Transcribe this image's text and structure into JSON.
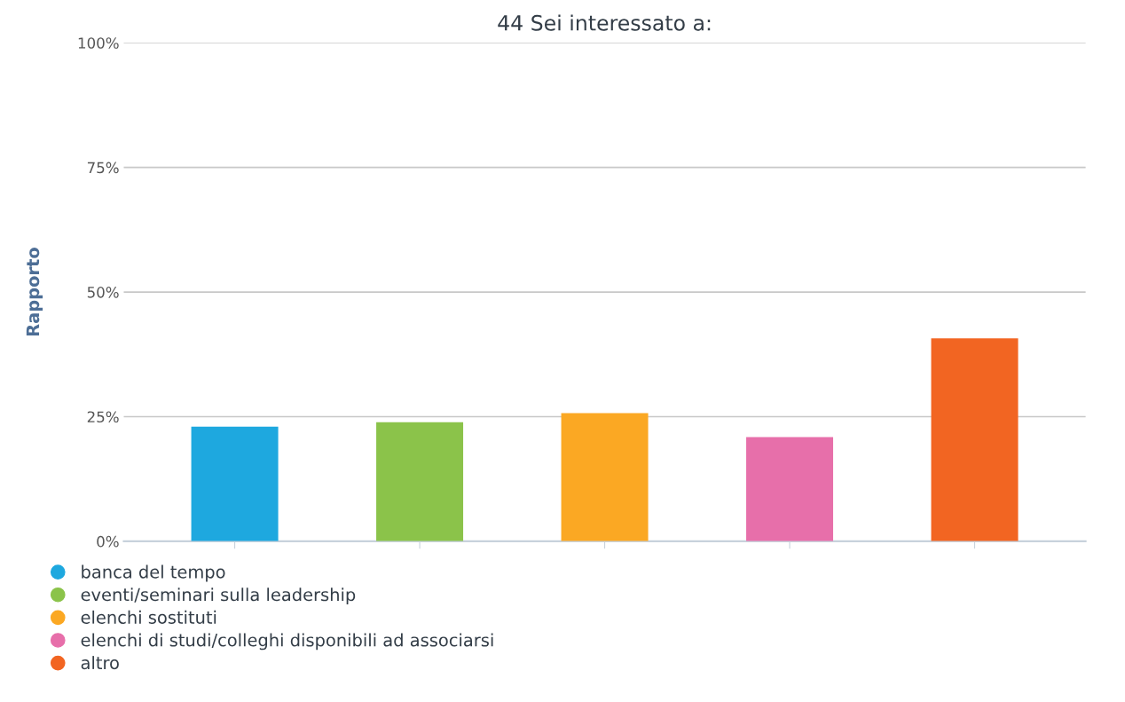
{
  "chart_data": {
    "type": "bar",
    "title": "44 Sei interessato a:",
    "ylabel": "Rapporto",
    "categories": [
      null,
      null,
      null,
      null,
      null
    ],
    "series": [
      {
        "name": "banca del tempo",
        "color": "#1ea8df",
        "values": [
          23.0,
          null,
          null,
          null,
          null
        ]
      },
      {
        "name": "eventi/seminari sulla leadership",
        "color": "#8bc34a",
        "values": [
          null,
          23.9,
          null,
          null,
          null
        ]
      },
      {
        "name": "elenchi sostituti",
        "color": "#fba823",
        "values": [
          null,
          null,
          25.7,
          null,
          null
        ]
      },
      {
        "name": "elenchi di studi/colleghi disponibili ad associarsi",
        "color": "#e76faa",
        "values": [
          null,
          null,
          null,
          20.9,
          null
        ]
      },
      {
        "name": "altro",
        "color": "#f26522",
        "values": [
          null,
          null,
          null,
          null,
          40.7
        ]
      }
    ],
    "ylim": [
      0,
      100
    ],
    "yticks": [
      {
        "value": 0,
        "label": "0%"
      },
      {
        "value": 25,
        "label": "25%"
      },
      {
        "value": 50,
        "label": "50%"
      },
      {
        "value": 75,
        "label": "75%"
      },
      {
        "value": 100,
        "label": "100%"
      }
    ],
    "grid": "y",
    "legend": "bottom left"
  }
}
